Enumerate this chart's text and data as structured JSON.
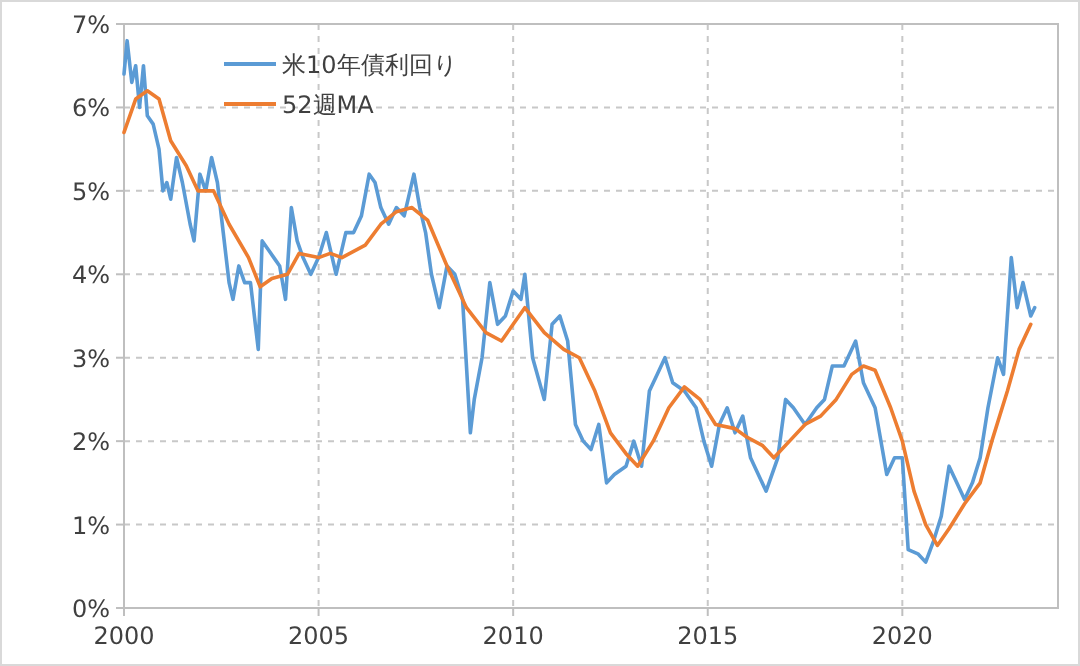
{
  "chart_data": {
    "type": "line",
    "xlim": [
      2000,
      2024
    ],
    "xticks": [
      2000,
      2005,
      2010,
      2015,
      2020
    ],
    "ylim": [
      0,
      7
    ],
    "yticks": [
      {
        "value": 0,
        "label": "0%"
      },
      {
        "value": 1,
        "label": "1%"
      },
      {
        "value": 2,
        "label": "2%"
      },
      {
        "value": 3,
        "label": "3%"
      },
      {
        "value": 4,
        "label": "4%"
      },
      {
        "value": 5,
        "label": "5%"
      },
      {
        "value": 6,
        "label": "6%"
      },
      {
        "value": 7,
        "label": "7%"
      }
    ],
    "grid": true,
    "legend": "top left",
    "line_style": "solid",
    "marker": "none",
    "series": [
      {
        "name": "米10年債利回り",
        "color": "#5b9bd5",
        "x": [
          2000.0,
          2000.08,
          2000.2,
          2000.3,
          2000.4,
          2000.5,
          2000.6,
          2000.75,
          2000.9,
          2001.0,
          2001.1,
          2001.2,
          2001.35,
          2001.5,
          2001.7,
          2001.8,
          2001.95,
          2002.1,
          2002.25,
          2002.4,
          2002.55,
          2002.7,
          2002.8,
          2002.95,
          2003.1,
          2003.25,
          2003.4,
          2003.45,
          2003.55,
          2003.7,
          2003.85,
          2004.0,
          2004.15,
          2004.3,
          2004.45,
          2004.6,
          2004.8,
          2005.0,
          2005.2,
          2005.45,
          2005.7,
          2005.9,
          2006.1,
          2006.3,
          2006.45,
          2006.6,
          2006.8,
          2007.0,
          2007.2,
          2007.45,
          2007.6,
          2007.75,
          2007.9,
          2008.1,
          2008.3,
          2008.5,
          2008.7,
          2008.9,
          2009.0,
          2009.2,
          2009.4,
          2009.6,
          2009.8,
          2010.0,
          2010.2,
          2010.3,
          2010.5,
          2010.8,
          2011.0,
          2011.2,
          2011.4,
          2011.6,
          2011.8,
          2012.0,
          2012.2,
          2012.4,
          2012.6,
          2012.9,
          2013.1,
          2013.3,
          2013.5,
          2013.7,
          2013.9,
          2014.1,
          2014.4,
          2014.7,
          2014.9,
          2015.1,
          2015.3,
          2015.5,
          2015.7,
          2015.9,
          2016.1,
          2016.5,
          2016.8,
          2017.0,
          2017.2,
          2017.5,
          2017.8,
          2018.0,
          2018.2,
          2018.5,
          2018.8,
          2019.0,
          2019.3,
          2019.6,
          2019.8,
          2020.0,
          2020.15,
          2020.4,
          2020.6,
          2020.8,
          2021.0,
          2021.2,
          2021.4,
          2021.6,
          2021.8,
          2022.0,
          2022.2,
          2022.45,
          2022.6,
          2022.8,
          2022.95,
          2023.1,
          2023.3,
          2023.4
        ],
        "values": [
          6.4,
          6.8,
          6.3,
          6.5,
          6.0,
          6.5,
          5.9,
          5.8,
          5.5,
          5.0,
          5.1,
          4.9,
          5.4,
          5.1,
          4.6,
          4.4,
          5.2,
          5.0,
          5.4,
          5.1,
          4.5,
          3.9,
          3.7,
          4.1,
          3.9,
          3.9,
          3.3,
          3.1,
          4.4,
          4.3,
          4.2,
          4.1,
          3.7,
          4.8,
          4.4,
          4.2,
          4.0,
          4.2,
          4.5,
          4.0,
          4.5,
          4.5,
          4.7,
          5.2,
          5.1,
          4.8,
          4.6,
          4.8,
          4.7,
          5.2,
          4.8,
          4.5,
          4.0,
          3.6,
          4.1,
          4.0,
          3.7,
          2.1,
          2.5,
          3.0,
          3.9,
          3.4,
          3.5,
          3.8,
          3.7,
          4.0,
          3.0,
          2.5,
          3.4,
          3.5,
          3.2,
          2.2,
          2.0,
          1.9,
          2.2,
          1.5,
          1.6,
          1.7,
          2.0,
          1.7,
          2.6,
          2.8,
          3.0,
          2.7,
          2.6,
          2.4,
          2.0,
          1.7,
          2.2,
          2.4,
          2.1,
          2.3,
          1.8,
          1.4,
          1.8,
          2.5,
          2.4,
          2.2,
          2.4,
          2.5,
          2.9,
          2.9,
          3.2,
          2.7,
          2.4,
          1.6,
          1.8,
          1.8,
          0.7,
          0.65,
          0.55,
          0.8,
          1.1,
          1.7,
          1.5,
          1.3,
          1.5,
          1.8,
          2.4,
          3.0,
          2.8,
          4.2,
          3.6,
          3.9,
          3.5,
          3.6
        ]
      },
      {
        "name": "52週MA",
        "color": "#ed7d31",
        "x": [
          2000.0,
          2000.3,
          2000.6,
          2000.9,
          2001.2,
          2001.6,
          2001.9,
          2002.3,
          2002.7,
          2003.2,
          2003.5,
          2003.8,
          2004.2,
          2004.5,
          2005.0,
          2005.3,
          2005.6,
          2006.2,
          2006.6,
          2007.0,
          2007.4,
          2007.8,
          2008.3,
          2008.8,
          2009.3,
          2009.7,
          2010.0,
          2010.3,
          2010.8,
          2011.3,
          2011.7,
          2012.1,
          2012.5,
          2012.9,
          2013.2,
          2013.6,
          2014.0,
          2014.4,
          2014.8,
          2015.2,
          2015.7,
          2016.0,
          2016.4,
          2016.7,
          2017.1,
          2017.5,
          2017.9,
          2018.3,
          2018.7,
          2019.0,
          2019.3,
          2019.7,
          2020.0,
          2020.3,
          2020.6,
          2020.9,
          2021.2,
          2021.6,
          2022.0,
          2022.3,
          2022.7,
          2023.0,
          2023.3
        ],
        "values": [
          5.7,
          6.1,
          6.2,
          6.1,
          5.6,
          5.3,
          5.0,
          5.0,
          4.6,
          4.2,
          3.85,
          3.95,
          4.0,
          4.25,
          4.2,
          4.25,
          4.2,
          4.35,
          4.6,
          4.75,
          4.8,
          4.65,
          4.1,
          3.6,
          3.3,
          3.2,
          3.4,
          3.6,
          3.3,
          3.1,
          3.0,
          2.6,
          2.1,
          1.85,
          1.7,
          2.0,
          2.4,
          2.65,
          2.5,
          2.2,
          2.15,
          2.05,
          1.95,
          1.8,
          2.0,
          2.2,
          2.3,
          2.5,
          2.8,
          2.9,
          2.85,
          2.4,
          2.0,
          1.4,
          1.0,
          0.75,
          0.95,
          1.25,
          1.5,
          2.0,
          2.6,
          3.1,
          3.4
        ]
      }
    ]
  }
}
